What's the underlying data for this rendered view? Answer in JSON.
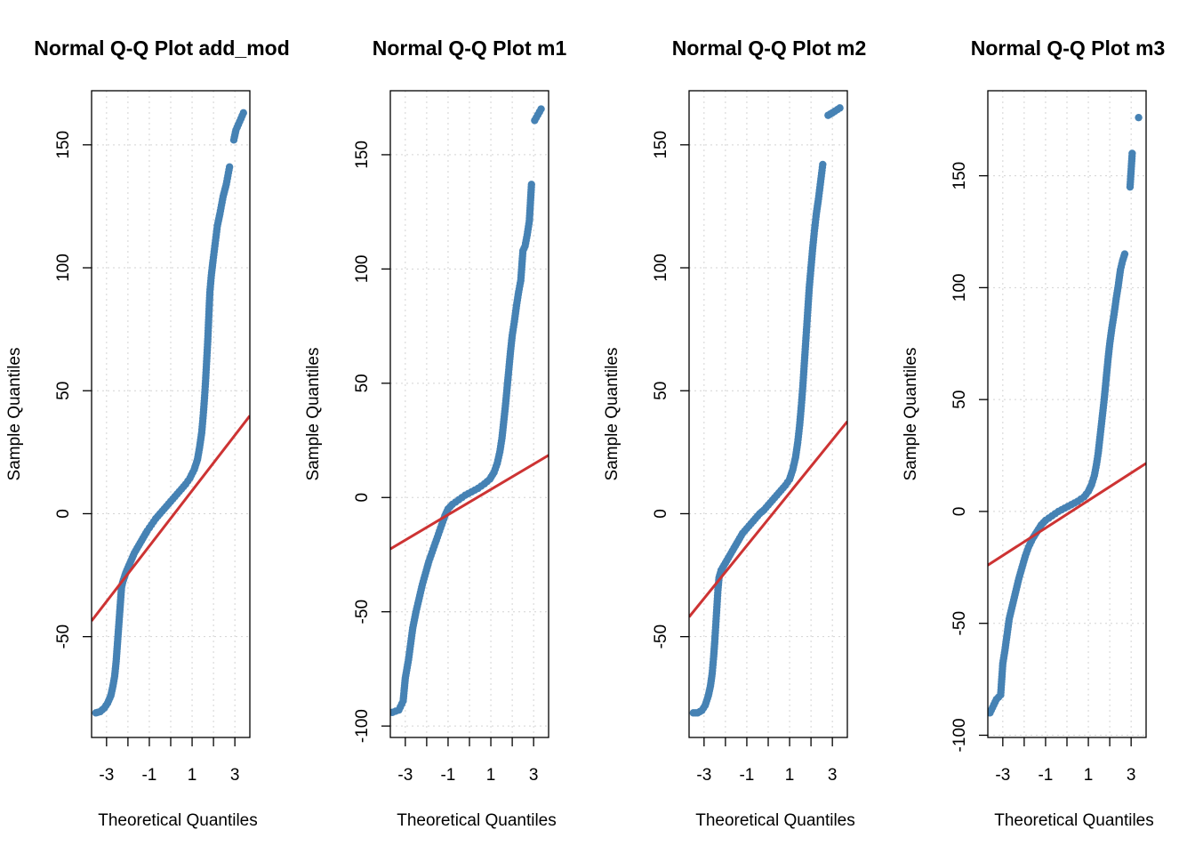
{
  "colors": {
    "points": "#4682B4",
    "line": "#CD3333",
    "grid": "#D3D3D3",
    "axis": "#000000",
    "background": "#FFFFFF"
  },
  "chart_data": [
    {
      "type": "scatter",
      "title": "Normal Q-Q Plot add_mod",
      "xlabel": "Theoretical Quantiles",
      "ylabel": "Sample Quantiles",
      "xlim": [
        -3.7,
        3.7
      ],
      "ylim": [
        -91,
        172
      ],
      "xticks": [
        -3,
        -1,
        1,
        3
      ],
      "xticks_grid": [
        -3,
        -2,
        -1,
        0,
        1,
        2,
        3
      ],
      "yticks": [
        -50,
        0,
        50,
        100,
        150
      ],
      "grid": true,
      "reference_line": {
        "x": [
          -3.7,
          3.7
        ],
        "y": [
          -43.6,
          39.8
        ]
      },
      "points": [
        [
          -3.5,
          -81
        ],
        [
          -3.3,
          -80.5
        ],
        [
          -3.1,
          -79
        ],
        [
          -2.95,
          -77
        ],
        [
          -2.8,
          -74
        ],
        [
          -2.7,
          -70
        ],
        [
          -2.62,
          -66
        ],
        [
          -2.55,
          -60
        ],
        [
          -2.5,
          -54
        ],
        [
          -2.45,
          -48
        ],
        [
          -2.4,
          -42
        ],
        [
          -2.35,
          -36
        ],
        [
          -2.3,
          -30
        ],
        [
          -2.25,
          -28
        ],
        [
          -2.1,
          -24
        ],
        [
          -1.9,
          -20
        ],
        [
          -1.7,
          -16
        ],
        [
          -1.5,
          -13
        ],
        [
          -1.3,
          -10
        ],
        [
          -1.1,
          -7
        ],
        [
          -0.9,
          -4.5
        ],
        [
          -0.7,
          -2
        ],
        [
          -0.5,
          0
        ],
        [
          -0.3,
          2
        ],
        [
          -0.1,
          4
        ],
        [
          0.1,
          6
        ],
        [
          0.3,
          8
        ],
        [
          0.5,
          10
        ],
        [
          0.7,
          12
        ],
        [
          0.9,
          14.5
        ],
        [
          1.1,
          18
        ],
        [
          1.25,
          22
        ],
        [
          1.35,
          27
        ],
        [
          1.45,
          33
        ],
        [
          1.52,
          40
        ],
        [
          1.58,
          47
        ],
        [
          1.63,
          54
        ],
        [
          1.68,
          62
        ],
        [
          1.73,
          70
        ],
        [
          1.78,
          80
        ],
        [
          1.83,
          90
        ],
        [
          1.9,
          97
        ],
        [
          1.98,
          103
        ],
        [
          2.08,
          110
        ],
        [
          2.18,
          117
        ],
        [
          2.3,
          122
        ],
        [
          2.45,
          129
        ],
        [
          2.6,
          134
        ],
        [
          2.75,
          141
        ],
        [
          2.95,
          152
        ],
        [
          3.05,
          156
        ],
        [
          3.4,
          163
        ]
      ]
    },
    {
      "type": "scatter",
      "title": "Normal Q-Q Plot m1",
      "xlabel": "Theoretical Quantiles",
      "ylabel": "Sample Quantiles",
      "xlim": [
        -3.7,
        3.7
      ],
      "ylim": [
        -105,
        178
      ],
      "xticks": [
        -3,
        -1,
        1,
        3
      ],
      "xticks_grid": [
        -3,
        -2,
        -1,
        0,
        1,
        2,
        3
      ],
      "yticks": [
        -100,
        -50,
        0,
        50,
        100,
        150
      ],
      "grid": true,
      "reference_line": {
        "x": [
          -3.7,
          3.7
        ],
        "y": [
          -22.5,
          18.5
        ]
      },
      "points": [
        [
          -3.6,
          -94
        ],
        [
          -3.3,
          -93
        ],
        [
          -3.1,
          -89
        ],
        [
          -3.0,
          -79
        ],
        [
          -2.85,
          -71
        ],
        [
          -2.75,
          -64
        ],
        [
          -2.65,
          -57
        ],
        [
          -2.5,
          -50
        ],
        [
          -2.35,
          -44
        ],
        [
          -2.2,
          -38
        ],
        [
          -2.05,
          -33
        ],
        [
          -1.9,
          -28
        ],
        [
          -1.75,
          -24
        ],
        [
          -1.6,
          -20
        ],
        [
          -1.45,
          -16
        ],
        [
          -1.3,
          -12
        ],
        [
          -1.15,
          -8
        ],
        [
          -1.0,
          -5
        ],
        [
          -0.8,
          -3
        ],
        [
          -0.5,
          -1
        ],
        [
          -0.2,
          1
        ],
        [
          0.1,
          2.5
        ],
        [
          0.4,
          4
        ],
        [
          0.7,
          6
        ],
        [
          0.95,
          8
        ],
        [
          1.15,
          11
        ],
        [
          1.3,
          15
        ],
        [
          1.42,
          20
        ],
        [
          1.52,
          26
        ],
        [
          1.6,
          33
        ],
        [
          1.68,
          40
        ],
        [
          1.76,
          48
        ],
        [
          1.84,
          56
        ],
        [
          1.92,
          64
        ],
        [
          2.0,
          71
        ],
        [
          2.1,
          77
        ],
        [
          2.2,
          84
        ],
        [
          2.3,
          90
        ],
        [
          2.4,
          95
        ],
        [
          2.5,
          108
        ],
        [
          2.6,
          110
        ],
        [
          2.7,
          115
        ],
        [
          2.8,
          121
        ],
        [
          2.9,
          137
        ],
        [
          3.05,
          165
        ],
        [
          3.35,
          170
        ]
      ]
    },
    {
      "type": "scatter",
      "title": "Normal Q-Q Plot m2",
      "xlabel": "Theoretical Quantiles",
      "ylabel": "Sample Quantiles",
      "xlim": [
        -3.7,
        3.7
      ],
      "ylim": [
        -91,
        172
      ],
      "xticks": [
        -3,
        -1,
        1,
        3
      ],
      "xticks_grid": [
        -3,
        -2,
        -1,
        0,
        1,
        2,
        3
      ],
      "yticks": [
        -50,
        0,
        50,
        100,
        150
      ],
      "grid": true,
      "reference_line": {
        "x": [
          -3.7,
          3.7
        ],
        "y": [
          -42,
          37.5
        ]
      },
      "points": [
        [
          -3.5,
          -81
        ],
        [
          -3.3,
          -81
        ],
        [
          -3.1,
          -80
        ],
        [
          -2.95,
          -78
        ],
        [
          -2.8,
          -74
        ],
        [
          -2.7,
          -70
        ],
        [
          -2.62,
          -65
        ],
        [
          -2.55,
          -58
        ],
        [
          -2.5,
          -52
        ],
        [
          -2.45,
          -45
        ],
        [
          -2.4,
          -38
        ],
        [
          -2.35,
          -31
        ],
        [
          -2.3,
          -26
        ],
        [
          -2.2,
          -23
        ],
        [
          -2.0,
          -20
        ],
        [
          -1.8,
          -17
        ],
        [
          -1.6,
          -14
        ],
        [
          -1.4,
          -11
        ],
        [
          -1.2,
          -8
        ],
        [
          -1.0,
          -6
        ],
        [
          -0.8,
          -4
        ],
        [
          -0.6,
          -2
        ],
        [
          -0.4,
          0
        ],
        [
          -0.2,
          1.5
        ],
        [
          0.0,
          3.5
        ],
        [
          0.2,
          5.5
        ],
        [
          0.4,
          7.5
        ],
        [
          0.6,
          9.5
        ],
        [
          0.8,
          11.5
        ],
        [
          1.0,
          14
        ],
        [
          1.15,
          18
        ],
        [
          1.28,
          23
        ],
        [
          1.38,
          29
        ],
        [
          1.47,
          36
        ],
        [
          1.55,
          44
        ],
        [
          1.62,
          52
        ],
        [
          1.68,
          60
        ],
        [
          1.74,
          68
        ],
        [
          1.8,
          76
        ],
        [
          1.86,
          84
        ],
        [
          1.92,
          92
        ],
        [
          2.0,
          100
        ],
        [
          2.08,
          108
        ],
        [
          2.16,
          115
        ],
        [
          2.25,
          122
        ],
        [
          2.35,
          128
        ],
        [
          2.45,
          135
        ],
        [
          2.55,
          142
        ],
        [
          2.8,
          162
        ],
        [
          3.0,
          163
        ],
        [
          3.35,
          165
        ]
      ]
    },
    {
      "type": "scatter",
      "title": "Normal Q-Q Plot m3",
      "xlabel": "Theoretical Quantiles",
      "ylabel": "Sample Quantiles",
      "xlim": [
        -3.7,
        3.7
      ],
      "ylim": [
        -101,
        188
      ],
      "xticks": [
        -3,
        -1,
        1,
        3
      ],
      "xticks_grid": [
        -3,
        -2,
        -1,
        0,
        1,
        2,
        3
      ],
      "yticks": [
        -100,
        -50,
        0,
        50,
        100,
        150
      ],
      "grid": true,
      "reference_line": {
        "x": [
          -3.7,
          3.7
        ],
        "y": [
          -24,
          21.5
        ]
      },
      "points": [
        [
          -3.6,
          -90
        ],
        [
          -3.3,
          -84
        ],
        [
          -3.1,
          -82
        ],
        [
          -3.0,
          -68
        ],
        [
          -2.9,
          -62
        ],
        [
          -2.8,
          -55
        ],
        [
          -2.7,
          -48
        ],
        [
          -2.55,
          -42
        ],
        [
          -2.4,
          -36
        ],
        [
          -2.25,
          -30
        ],
        [
          -2.1,
          -25
        ],
        [
          -1.95,
          -20
        ],
        [
          -1.8,
          -16
        ],
        [
          -1.6,
          -12
        ],
        [
          -1.4,
          -9
        ],
        [
          -1.2,
          -6
        ],
        [
          -1.0,
          -4
        ],
        [
          -0.7,
          -2
        ],
        [
          -0.4,
          0
        ],
        [
          -0.1,
          1.5
        ],
        [
          0.2,
          3
        ],
        [
          0.5,
          4.5
        ],
        [
          0.8,
          6.5
        ],
        [
          1.0,
          9
        ],
        [
          1.15,
          12
        ],
        [
          1.28,
          16
        ],
        [
          1.38,
          21
        ],
        [
          1.46,
          26
        ],
        [
          1.53,
          32
        ],
        [
          1.6,
          38
        ],
        [
          1.67,
          44
        ],
        [
          1.74,
          50
        ],
        [
          1.8,
          56
        ],
        [
          1.86,
          62
        ],
        [
          1.92,
          68
        ],
        [
          2.0,
          75
        ],
        [
          2.1,
          82
        ],
        [
          2.2,
          88
        ],
        [
          2.3,
          95
        ],
        [
          2.4,
          101
        ],
        [
          2.5,
          108
        ],
        [
          2.6,
          112
        ],
        [
          2.7,
          115
        ],
        [
          2.95,
          145
        ],
        [
          3.05,
          160
        ],
        [
          3.35,
          176
        ]
      ]
    }
  ]
}
